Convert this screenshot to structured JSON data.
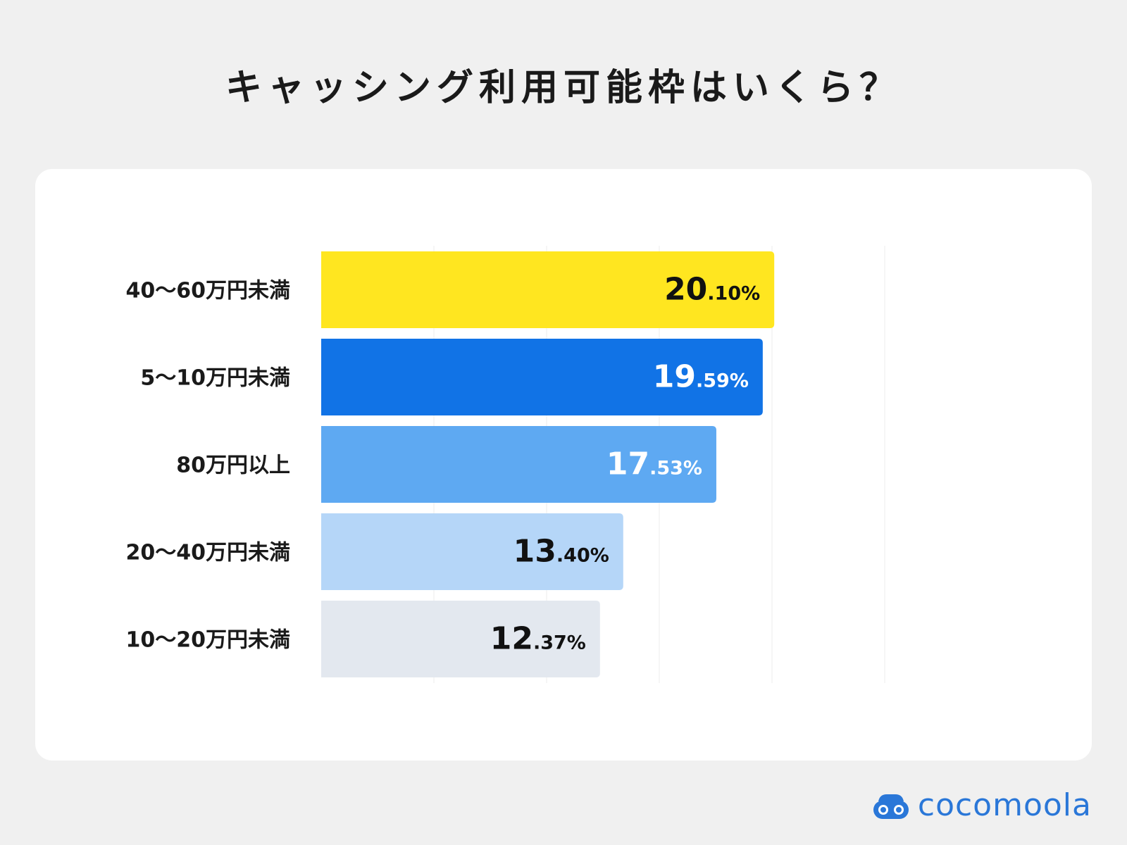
{
  "title": "キャッシング利用可能枠はいくら？",
  "brand": {
    "name": "cocomoola",
    "icon": "car-logo-icon",
    "color": "#2a77d8"
  },
  "chart_data": {
    "type": "bar",
    "orientation": "horizontal",
    "title": "キャッシング利用可能枠はいくら？",
    "unit": "%",
    "categories": [
      "40〜60万円未満",
      "5〜10万円未満",
      "80万円以上",
      "20〜40万円未満",
      "10〜20万円未満"
    ],
    "values": [
      20.1,
      19.59,
      17.53,
      13.4,
      12.37
    ],
    "value_labels": [
      {
        "int": "20",
        "dec": ".10%"
      },
      {
        "int": "19",
        "dec": ".59%"
      },
      {
        "int": "17",
        "dec": ".53%"
      },
      {
        "int": "13",
        "dec": ".40%"
      },
      {
        "int": "12",
        "dec": ".37%"
      }
    ],
    "bar_colors": [
      "#ffe620",
      "#1173e6",
      "#5ea9f2",
      "#b5d6f8",
      "#e3e8ef"
    ],
    "label_colors": [
      "#111111",
      "#ffffff",
      "#ffffff",
      "#111111",
      "#111111"
    ],
    "xlim": [
      0,
      25
    ],
    "grid": true,
    "legend": "none"
  }
}
